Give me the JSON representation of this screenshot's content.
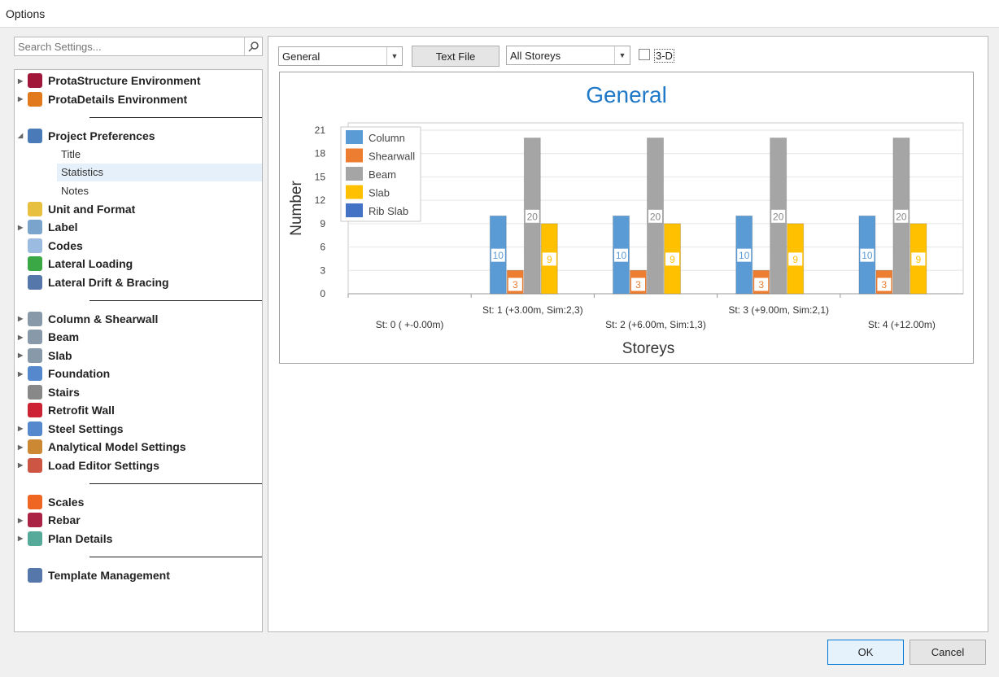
{
  "window": {
    "title": "Options"
  },
  "search": {
    "placeholder": "Search Settings..."
  },
  "tree": [
    {
      "label": "ProtaStructure Environment",
      "arrow": "▶",
      "color": "#a0173a",
      "type": "node"
    },
    {
      "label": "ProtaDetails Environment",
      "arrow": "▶",
      "color": "#e07a1c",
      "type": "node"
    },
    {
      "type": "sep"
    },
    {
      "label": "Project Preferences",
      "arrow": "◢",
      "color": "#4a7ab8",
      "type": "node"
    },
    {
      "label": "Title",
      "type": "child"
    },
    {
      "label": "Statistics",
      "type": "child",
      "selected": true
    },
    {
      "label": "Notes",
      "type": "child"
    },
    {
      "label": "Unit and Format",
      "color": "#e8c040",
      "type": "node"
    },
    {
      "label": "Label",
      "arrow": "▶",
      "color": "#7aa4cc",
      "type": "node"
    },
    {
      "label": "Codes",
      "color": "#9bbbe0",
      "type": "node"
    },
    {
      "label": "Lateral Loading",
      "color": "#39a845",
      "type": "node"
    },
    {
      "label": "Lateral Drift & Bracing",
      "color": "#5577aa",
      "type": "node"
    },
    {
      "type": "sep"
    },
    {
      "label": "Column & Shearwall",
      "arrow": "▶",
      "color": "#8899aa",
      "type": "node"
    },
    {
      "label": "Beam",
      "arrow": "▶",
      "color": "#8899aa",
      "type": "node"
    },
    {
      "label": "Slab",
      "arrow": "▶",
      "color": "#8899aa",
      "type": "node"
    },
    {
      "label": "Foundation",
      "arrow": "▶",
      "color": "#5588cc",
      "type": "node"
    },
    {
      "label": "Stairs",
      "color": "#888888",
      "type": "node"
    },
    {
      "label": "Retrofit Wall",
      "color": "#cc2233",
      "type": "node"
    },
    {
      "label": "Steel Settings",
      "arrow": "▶",
      "color": "#5588cc",
      "type": "node"
    },
    {
      "label": "Analytical Model Settings",
      "arrow": "▶",
      "color": "#cc8833",
      "type": "node"
    },
    {
      "label": "Load Editor Settings",
      "arrow": "▶",
      "color": "#cc5544",
      "type": "node"
    },
    {
      "type": "sep"
    },
    {
      "label": "Scales",
      "color": "#ee6622",
      "type": "node"
    },
    {
      "label": "Rebar",
      "arrow": "▶",
      "color": "#aa2244",
      "type": "node"
    },
    {
      "label": "Plan Details",
      "arrow": "▶",
      "color": "#55aa99",
      "type": "node"
    },
    {
      "type": "sep"
    },
    {
      "label": "Template Management",
      "color": "#5577aa",
      "type": "node"
    }
  ],
  "toolbar": {
    "chart_type": "General",
    "text_file": "Text File",
    "storeys": "All Storeys",
    "three_d": "3-D"
  },
  "chart_data": {
    "type": "bar",
    "title": "General",
    "xlabel": "Storeys",
    "ylabel": "Number",
    "ylim": [
      0,
      21
    ],
    "yticks": [
      0,
      3,
      6,
      9,
      12,
      15,
      18,
      21
    ],
    "categories": [
      "St: 0 ( +-0.00m)",
      "St: 1 (+3.00m, Sim:2,3)",
      "St: 2 (+6.00m, Sim:1,3)",
      "St: 3 (+9.00m, Sim:2,1)",
      "St: 4 (+12.00m)"
    ],
    "legend_position": "top-left",
    "series": [
      {
        "name": "Column",
        "color": "#5b9bd5",
        "values": [
          0,
          10,
          10,
          10,
          10
        ]
      },
      {
        "name": "Shearwall",
        "color": "#ed7d31",
        "values": [
          0,
          3,
          3,
          3,
          3
        ]
      },
      {
        "name": "Beam",
        "color": "#a5a5a5",
        "values": [
          0,
          20,
          20,
          20,
          20
        ]
      },
      {
        "name": "Slab",
        "color": "#ffc000",
        "values": [
          0,
          9,
          9,
          9,
          9
        ]
      },
      {
        "name": "Rib Slab",
        "color": "#4472c4",
        "values": [
          0,
          0,
          0,
          0,
          0
        ]
      }
    ]
  },
  "footer": {
    "ok": "OK",
    "cancel": "Cancel"
  }
}
